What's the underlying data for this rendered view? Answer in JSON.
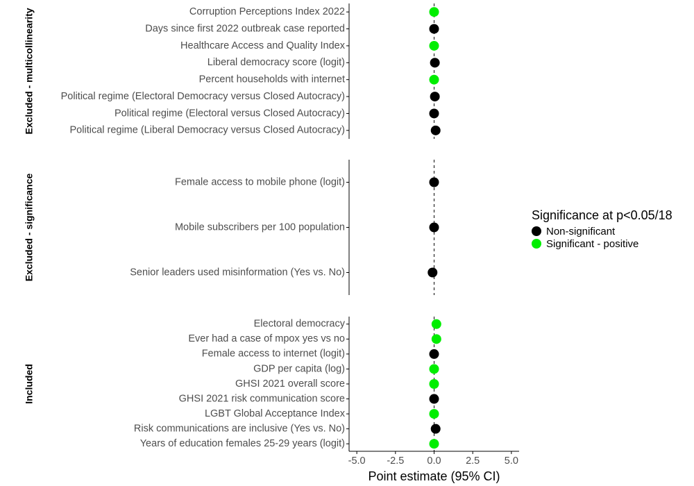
{
  "chart_data": {
    "type": "scatter",
    "xlabel": "Point estimate (95% CI)",
    "xlim": [
      -5.5,
      5.5
    ],
    "xticks": [
      -5.0,
      -2.5,
      0.0,
      2.5,
      5.0
    ],
    "xtick_labels": [
      "-5.0",
      "-2.5",
      "0.0",
      "2.5",
      "5.0"
    ],
    "reference_line": 0,
    "colors": {
      "Non-significant": "#000000",
      "Significant - positive": "#00ee00"
    },
    "legend": {
      "title": "Significance at p<0.05/18",
      "position": "right",
      "items": [
        "Non-significant",
        "Significant - positive"
      ]
    },
    "panels": [
      {
        "label": "Excluded - multicollinearity",
        "points": [
          {
            "label": "Corruption Perceptions Index 2022",
            "estimate": 0.0,
            "significance": "Significant - positive"
          },
          {
            "label": "Days since first 2022 outbreak case reported",
            "estimate": 0.0,
            "significance": "Non-significant"
          },
          {
            "label": "Healthcare Access and Quality Index",
            "estimate": 0.0,
            "significance": "Significant - positive"
          },
          {
            "label": "Liberal democracy score (logit)",
            "estimate": 0.05,
            "significance": "Non-significant"
          },
          {
            "label": "Percent households with internet",
            "estimate": 0.0,
            "significance": "Significant - positive"
          },
          {
            "label": "Political regime (Electoral Democracy versus Closed Autocracy)",
            "estimate": 0.05,
            "significance": "Non-significant"
          },
          {
            "label": "Political regime (Electoral versus Closed Autocracy)",
            "estimate": 0.0,
            "significance": "Non-significant"
          },
          {
            "label": "Political regime (Liberal Democracy versus Closed Autocracy)",
            "estimate": 0.1,
            "significance": "Non-significant"
          }
        ]
      },
      {
        "label": "Excluded - significance",
        "points": [
          {
            "label": "Female access to mobile phone (logit)",
            "estimate": 0.0,
            "significance": "Non-significant"
          },
          {
            "label": "Mobile subscribers per 100 population",
            "estimate": 0.0,
            "significance": "Non-significant"
          },
          {
            "label": "Senior leaders used misinformation (Yes vs. No)",
            "estimate": -0.1,
            "significance": "Non-significant"
          }
        ]
      },
      {
        "label": "Included",
        "points": [
          {
            "label": "Electoral democracy",
            "estimate": 0.15,
            "significance": "Significant - positive"
          },
          {
            "label": "Ever had a case of mpox yes vs no",
            "estimate": 0.15,
            "significance": "Significant - positive"
          },
          {
            "label": "Female access to internet (logit)",
            "estimate": 0.0,
            "significance": "Non-significant"
          },
          {
            "label": "GDP per capita (log)",
            "estimate": 0.0,
            "significance": "Significant - positive"
          },
          {
            "label": "GHSI 2021 overall score",
            "estimate": 0.0,
            "significance": "Significant - positive"
          },
          {
            "label": "GHSI 2021 risk communication score",
            "estimate": 0.0,
            "significance": "Non-significant"
          },
          {
            "label": "LGBT Global Acceptance Index",
            "estimate": 0.0,
            "significance": "Significant - positive"
          },
          {
            "label": "Risk communications are inclusive (Yes vs. No)",
            "estimate": 0.1,
            "significance": "Non-significant"
          },
          {
            "label": "Years of education females 25-29 years (logit)",
            "estimate": 0.0,
            "significance": "Significant - positive"
          }
        ]
      }
    ]
  }
}
